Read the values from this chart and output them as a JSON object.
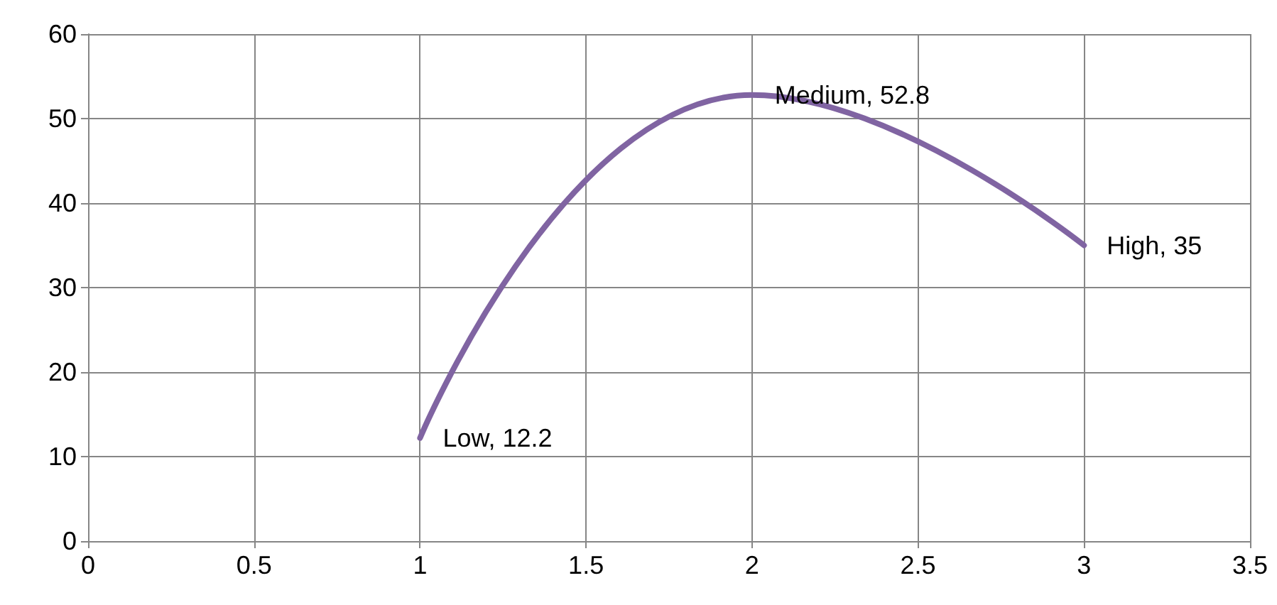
{
  "chart_data": {
    "type": "line",
    "x": [
      1,
      2,
      3
    ],
    "series": [
      {
        "color": "#8064a2",
        "values": [
          12.2,
          52.8,
          35
        ],
        "value_labels": [
          "Low, 12.2",
          "Medium, 52.8",
          "High, 35"
        ]
      }
    ],
    "xlim": [
      0,
      3.5
    ],
    "xticks": [
      0,
      0.5,
      1,
      1.5,
      2,
      2.5,
      3,
      3.5
    ],
    "ylim": [
      0,
      60
    ],
    "yticks": [
      0,
      10,
      20,
      30,
      40,
      50,
      60
    ],
    "grid": true,
    "marker": "none",
    "line_style": "solid"
  }
}
